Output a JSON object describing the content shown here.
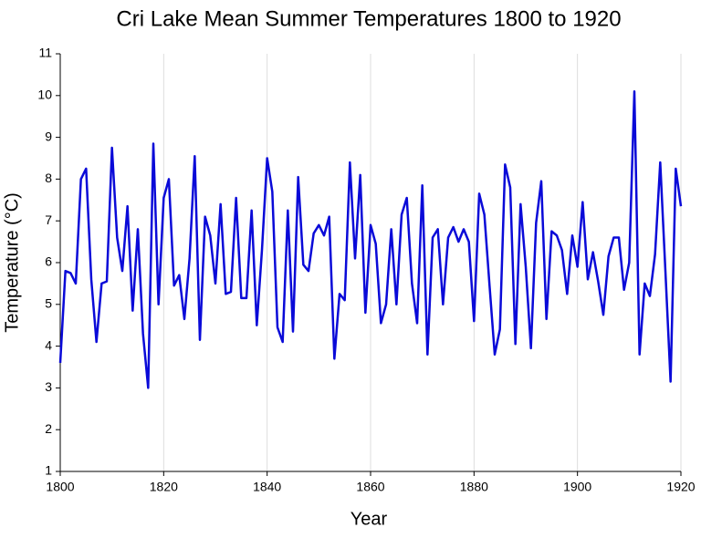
{
  "chart_data": {
    "type": "line",
    "title": "Cri Lake Mean Summer Temperatures 1800 to 1920",
    "x_label": "Year",
    "y_label": "Temperature (°C)",
    "x": [
      1800,
      1801,
      1802,
      1803,
      1804,
      1805,
      1806,
      1807,
      1808,
      1809,
      1810,
      1811,
      1812,
      1813,
      1814,
      1815,
      1816,
      1817,
      1818,
      1819,
      1820,
      1821,
      1822,
      1823,
      1824,
      1825,
      1826,
      1827,
      1828,
      1829,
      1830,
      1831,
      1832,
      1833,
      1834,
      1835,
      1836,
      1837,
      1838,
      1839,
      1840,
      1841,
      1842,
      1843,
      1844,
      1845,
      1846,
      1847,
      1848,
      1849,
      1850,
      1851,
      1852,
      1853,
      1854,
      1855,
      1856,
      1857,
      1858,
      1859,
      1860,
      1861,
      1862,
      1863,
      1864,
      1865,
      1866,
      1867,
      1868,
      1869,
      1870,
      1871,
      1872,
      1873,
      1874,
      1875,
      1876,
      1877,
      1878,
      1879,
      1880,
      1881,
      1882,
      1883,
      1884,
      1885,
      1886,
      1887,
      1888,
      1889,
      1890,
      1891,
      1892,
      1893,
      1894,
      1895,
      1896,
      1897,
      1898,
      1899,
      1900,
      1901,
      1902,
      1903,
      1904,
      1905,
      1906,
      1907,
      1908,
      1909,
      1910,
      1911,
      1912,
      1913,
      1914,
      1915,
      1916,
      1917,
      1918,
      1919,
      1920
    ],
    "series": [
      {
        "name": "Temperature",
        "color": "#0a0ad8",
        "values": [
          3.6,
          5.8,
          5.75,
          5.5,
          8.0,
          8.25,
          5.6,
          4.1,
          5.5,
          5.55,
          8.75,
          6.6,
          5.8,
          7.35,
          4.85,
          6.8,
          4.3,
          3.0,
          8.85,
          5.0,
          7.55,
          8.0,
          5.45,
          5.7,
          4.65,
          6.1,
          8.55,
          4.15,
          7.1,
          6.65,
          5.5,
          7.4,
          5.25,
          5.3,
          7.55,
          5.15,
          5.15,
          7.25,
          4.5,
          6.3,
          8.5,
          7.7,
          4.45,
          4.1,
          7.25,
          4.35,
          8.05,
          5.95,
          5.8,
          6.7,
          6.9,
          6.65,
          7.1,
          3.7,
          5.25,
          5.1,
          8.4,
          6.1,
          8.1,
          4.8,
          6.9,
          6.45,
          4.55,
          5.0,
          6.8,
          5.0,
          7.15,
          7.55,
          5.5,
          4.55,
          7.85,
          3.8,
          6.6,
          6.8,
          5.0,
          6.6,
          6.85,
          6.5,
          6.8,
          6.5,
          4.6,
          7.65,
          7.15,
          5.45,
          3.8,
          4.4,
          8.35,
          7.8,
          4.05,
          7.4,
          5.9,
          3.95,
          6.95,
          7.95,
          4.65,
          6.75,
          6.65,
          6.3,
          5.25,
          6.65,
          5.9,
          7.45,
          5.6,
          6.25,
          5.55,
          4.75,
          6.15,
          6.6,
          6.6,
          5.35,
          6.0,
          10.1,
          3.8,
          5.5,
          5.2,
          6.2,
          8.4,
          5.8,
          3.15,
          8.25,
          7.35
        ]
      }
    ],
    "xlim": [
      1800,
      1920
    ],
    "xticks": [
      1800,
      1820,
      1840,
      1860,
      1880,
      1900,
      1920
    ],
    "ylim": [
      1,
      11
    ],
    "yticks": [
      1,
      2,
      3,
      4,
      5,
      6,
      7,
      8,
      9,
      10,
      11
    ],
    "grid": "x"
  }
}
